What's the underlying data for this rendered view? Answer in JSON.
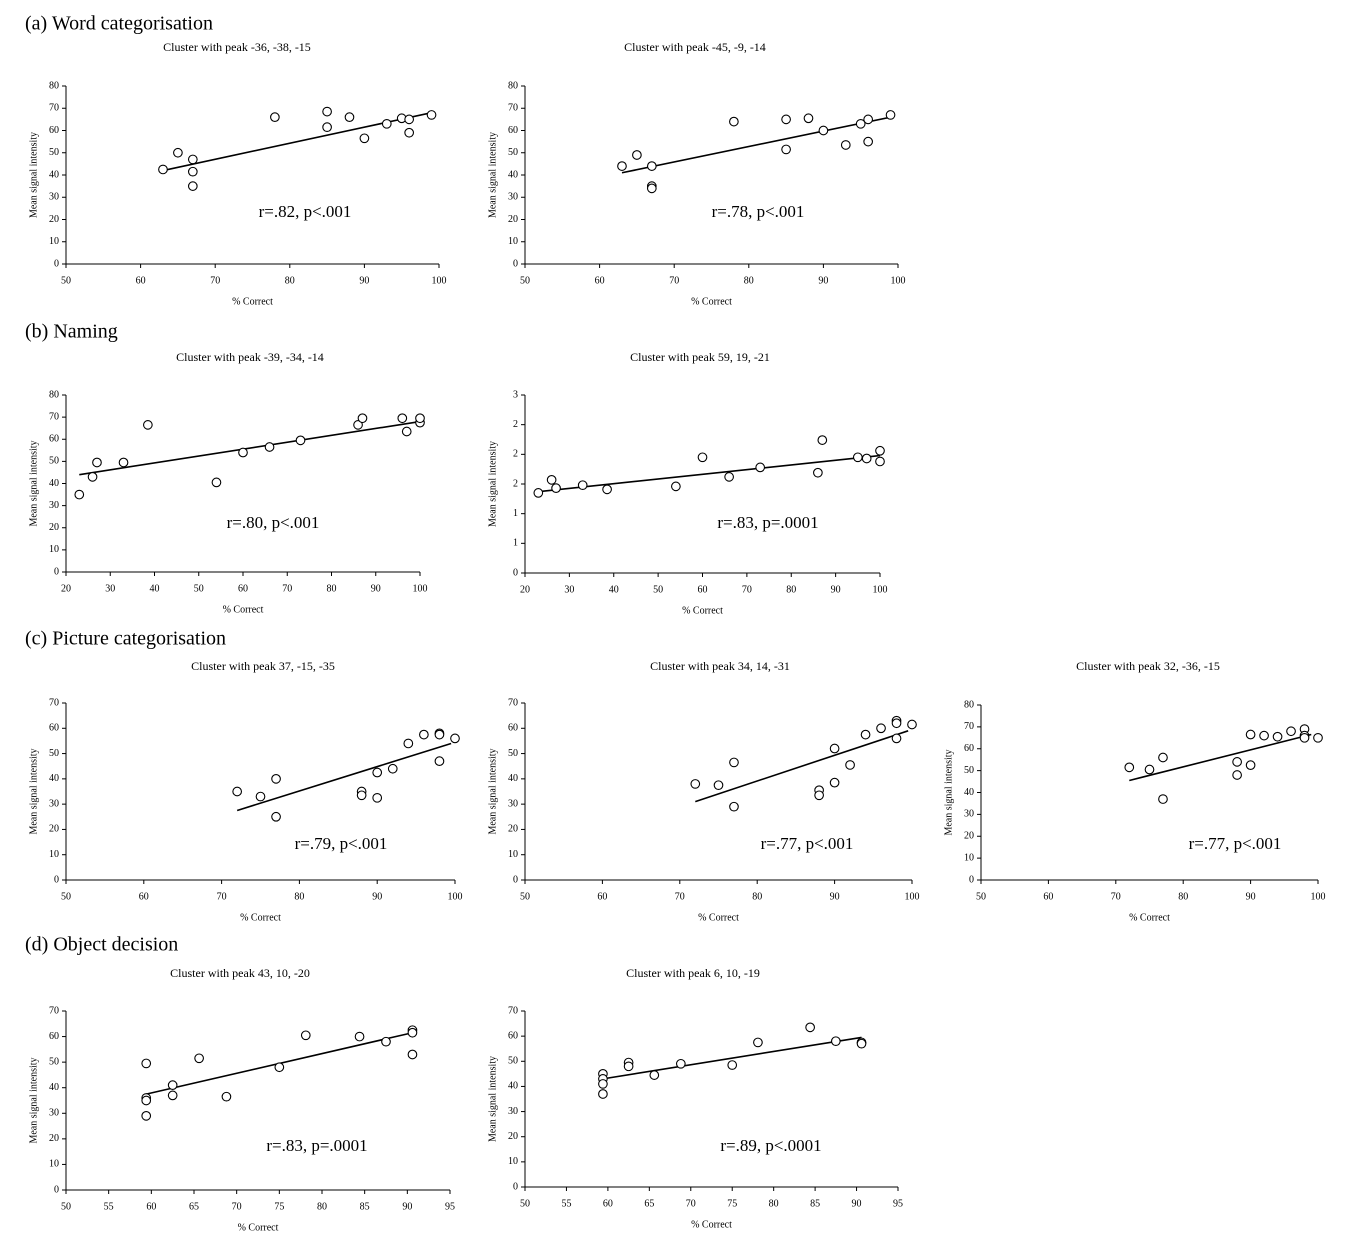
{
  "sections": [
    "(a) Word categorisation",
    "(b) Naming",
    "(c) Picture categorisation",
    "(d) Object decision"
  ],
  "chart_data": [
    {
      "type": "scatter",
      "title": "Cluster with peak -36, -38, -15",
      "xlabel": "% Correct",
      "ylabel": "Mean signal intensity",
      "annotation": "r=.82, p<.001",
      "x": [
        63,
        65,
        67,
        67,
        67,
        78,
        85,
        85,
        88,
        90,
        93,
        95,
        96,
        96,
        99
      ],
      "y": [
        42.5,
        50,
        47,
        41.5,
        35,
        66,
        68.5,
        61.5,
        66,
        56.5,
        63,
        65.5,
        65,
        59,
        67
      ],
      "trend": {
        "x": [
          63,
          99
        ],
        "y": [
          42,
          68
        ]
      },
      "xlim": [
        50,
        100
      ],
      "ylim": [
        0,
        80
      ],
      "xticks": [
        50,
        60,
        70,
        80,
        90,
        100
      ],
      "yticks": [
        0,
        10,
        20,
        30,
        40,
        50,
        60,
        70,
        80
      ]
    },
    {
      "type": "scatter",
      "title": "Cluster with peak -45, -9, -14",
      "xlabel": "% Correct",
      "ylabel": "Mean signal intensity",
      "annotation": "r=.78, p<.001",
      "x": [
        63,
        65,
        67,
        67,
        67,
        78,
        85,
        85,
        88,
        90,
        93,
        95,
        96,
        96,
        99
      ],
      "y": [
        44,
        49,
        44,
        35,
        34,
        64,
        65,
        51.5,
        65.5,
        60,
        53.5,
        63,
        65,
        55,
        67
      ],
      "trend": {
        "x": [
          63,
          99
        ],
        "y": [
          41,
          66
        ]
      },
      "xlim": [
        50,
        100
      ],
      "ylim": [
        0,
        80
      ],
      "xticks": [
        50,
        60,
        70,
        80,
        90,
        100
      ],
      "yticks": [
        0,
        10,
        20,
        30,
        40,
        50,
        60,
        70,
        80
      ]
    },
    {
      "type": "scatter",
      "title": "Cluster with peak -39, -34, -14",
      "xlabel": "% Correct",
      "ylabel": "Mean signal intensity",
      "annotation": "r=.80, p<.001",
      "x": [
        23,
        26,
        27,
        33,
        38.5,
        54,
        60,
        66,
        73,
        86,
        87,
        96,
        97,
        100,
        100
      ],
      "y": [
        35,
        43,
        49.5,
        49.5,
        66.5,
        40.5,
        54,
        56.5,
        59.5,
        66.5,
        69.5,
        69.5,
        63.5,
        67.5,
        69.5
      ],
      "trend": {
        "x": [
          23,
          100
        ],
        "y": [
          44,
          68
        ]
      },
      "xlim": [
        20,
        100
      ],
      "ylim": [
        0,
        80
      ],
      "xticks": [
        20,
        30,
        40,
        50,
        60,
        70,
        80,
        90,
        100
      ],
      "yticks": [
        0,
        10,
        20,
        30,
        40,
        50,
        60,
        70,
        80
      ]
    },
    {
      "type": "scatter",
      "title": "Cluster with peak 59, 19, -21",
      "xlabel": "% Correct",
      "ylabel": "Mean signal intensity",
      "annotation": "r=.83, p=.0001",
      "x": [
        23,
        26,
        27,
        33,
        38.5,
        54,
        60,
        66,
        73,
        86,
        87,
        95,
        97,
        100,
        100
      ],
      "y": [
        1.35,
        1.57,
        1.43,
        1.48,
        1.41,
        1.46,
        1.95,
        1.62,
        1.78,
        1.69,
        2.24,
        1.95,
        1.93,
        2.06,
        1.88
      ],
      "trend": {
        "x": [
          23,
          100
        ],
        "y": [
          1.37,
          1.98
        ]
      },
      "xlim": [
        20,
        100
      ],
      "ylim": [
        0,
        3
      ],
      "xticks": [
        20,
        30,
        40,
        50,
        60,
        70,
        80,
        90,
        100
      ],
      "yticks": [
        0,
        {
          "value": 0.5,
          "label": "1"
        },
        1,
        {
          "value": 1.5,
          "label": "2"
        },
        2,
        {
          "value": 2.5,
          "label": "2"
        },
        3
      ]
    },
    {
      "type": "scatter",
      "title": "Cluster with peak 37, -15, -35",
      "xlabel": "% Correct",
      "ylabel": "Mean signal intensity",
      "annotation": "r=.79, p<.001",
      "x": [
        72,
        75,
        77,
        77,
        88,
        88,
        90,
        90,
        92,
        94,
        96,
        98,
        98,
        98,
        100
      ],
      "y": [
        35,
        33,
        40,
        25,
        35,
        33.5,
        42.5,
        32.5,
        44,
        54,
        57.5,
        58,
        57.5,
        47,
        56
      ],
      "trend": {
        "x": [
          72,
          99.5
        ],
        "y": [
          27.5,
          54
        ]
      },
      "xlim": [
        50,
        100
      ],
      "ylim": [
        0,
        70
      ],
      "xticks": [
        50,
        60,
        70,
        80,
        90,
        100
      ],
      "yticks": [
        0,
        10,
        20,
        30,
        40,
        50,
        60,
        70
      ]
    },
    {
      "type": "scatter",
      "title": "Cluster with peak 34, 14, -31",
      "xlabel": "% Correct",
      "ylabel": "Mean signal intensity",
      "annotation": "r=.77, p<.001",
      "x": [
        72,
        75,
        77,
        77,
        88,
        88,
        90,
        90,
        92,
        94,
        96,
        98,
        98,
        98,
        100
      ],
      "y": [
        38,
        37.5,
        46.5,
        29,
        35.5,
        33.5,
        52,
        38.5,
        45.5,
        57.5,
        60,
        63,
        62,
        56,
        61.5
      ],
      "trend": {
        "x": [
          72,
          99.5
        ],
        "y": [
          31,
          59
        ]
      },
      "xlim": [
        50,
        100
      ],
      "ylim": [
        0,
        70
      ],
      "xticks": [
        50,
        60,
        70,
        80,
        90,
        100
      ],
      "yticks": [
        0,
        10,
        20,
        30,
        40,
        50,
        60,
        70
      ]
    },
    {
      "type": "scatter",
      "title": "Cluster with peak 32, -36, -15",
      "xlabel": "% Correct",
      "ylabel": "Mean signal intensity",
      "annotation": "r=.77, p<.001",
      "x": [
        72,
        75,
        77,
        77,
        88,
        88,
        90,
        90,
        92,
        94,
        96,
        98,
        98,
        98,
        100
      ],
      "y": [
        51.5,
        50.5,
        56,
        37,
        54,
        48,
        66.5,
        52.5,
        66,
        65.5,
        68,
        69,
        66,
        65,
        65
      ],
      "trend": {
        "x": [
          72,
          99
        ],
        "y": [
          45.5,
          66.5
        ]
      },
      "xlim": [
        50,
        100
      ],
      "ylim": [
        0,
        80
      ],
      "xticks": [
        50,
        60,
        70,
        80,
        90,
        100
      ],
      "yticks": [
        0,
        10,
        20,
        30,
        40,
        50,
        60,
        70,
        80
      ]
    },
    {
      "type": "scatter",
      "title": "Cluster with peak 43, 10, -20",
      "xlabel": "% Correct",
      "ylabel": "Mean signal intensity",
      "annotation": "r=.83, p=.0001",
      "x": [
        59.4,
        59.4,
        59.4,
        59.4,
        62.5,
        62.5,
        65.6,
        68.8,
        75,
        78.1,
        84.4,
        87.5,
        90.6,
        90.6,
        90.6
      ],
      "y": [
        49.5,
        36,
        35,
        29,
        41,
        37,
        51.5,
        36.5,
        48,
        60.5,
        60,
        58,
        62.5,
        61.5,
        53
      ],
      "trend": {
        "x": [
          59.4,
          90.6
        ],
        "y": [
          37.5,
          61.5
        ]
      },
      "xlim": [
        50,
        95
      ],
      "ylim": [
        0,
        70
      ],
      "xticks": [
        50,
        55,
        60,
        65,
        70,
        75,
        80,
        85,
        90,
        95
      ],
      "yticks": [
        0,
        10,
        20,
        30,
        40,
        50,
        60,
        70
      ]
    },
    {
      "type": "scatter",
      "title": "Cluster with peak 6, 10, -19",
      "xlabel": "% Correct",
      "ylabel": "Mean signal intensity",
      "annotation": "r=.89, p<.0001",
      "x": [
        59.4,
        59.4,
        59.4,
        59.4,
        62.5,
        62.5,
        65.6,
        68.8,
        75,
        78.1,
        84.4,
        87.5,
        90.6,
        90.6
      ],
      "y": [
        45,
        43,
        41,
        37,
        49.5,
        48,
        44.5,
        49,
        48.5,
        57.5,
        63.5,
        58,
        57.5,
        57
      ],
      "trend": {
        "x": [
          59.4,
          90.6
        ],
        "y": [
          43,
          59.5
        ]
      },
      "xlim": [
        50,
        95
      ],
      "ylim": [
        0,
        70
      ],
      "xticks": [
        50,
        55,
        60,
        65,
        70,
        75,
        80,
        85,
        90,
        95
      ],
      "yticks": [
        0,
        10,
        20,
        30,
        40,
        50,
        60,
        70
      ]
    }
  ]
}
